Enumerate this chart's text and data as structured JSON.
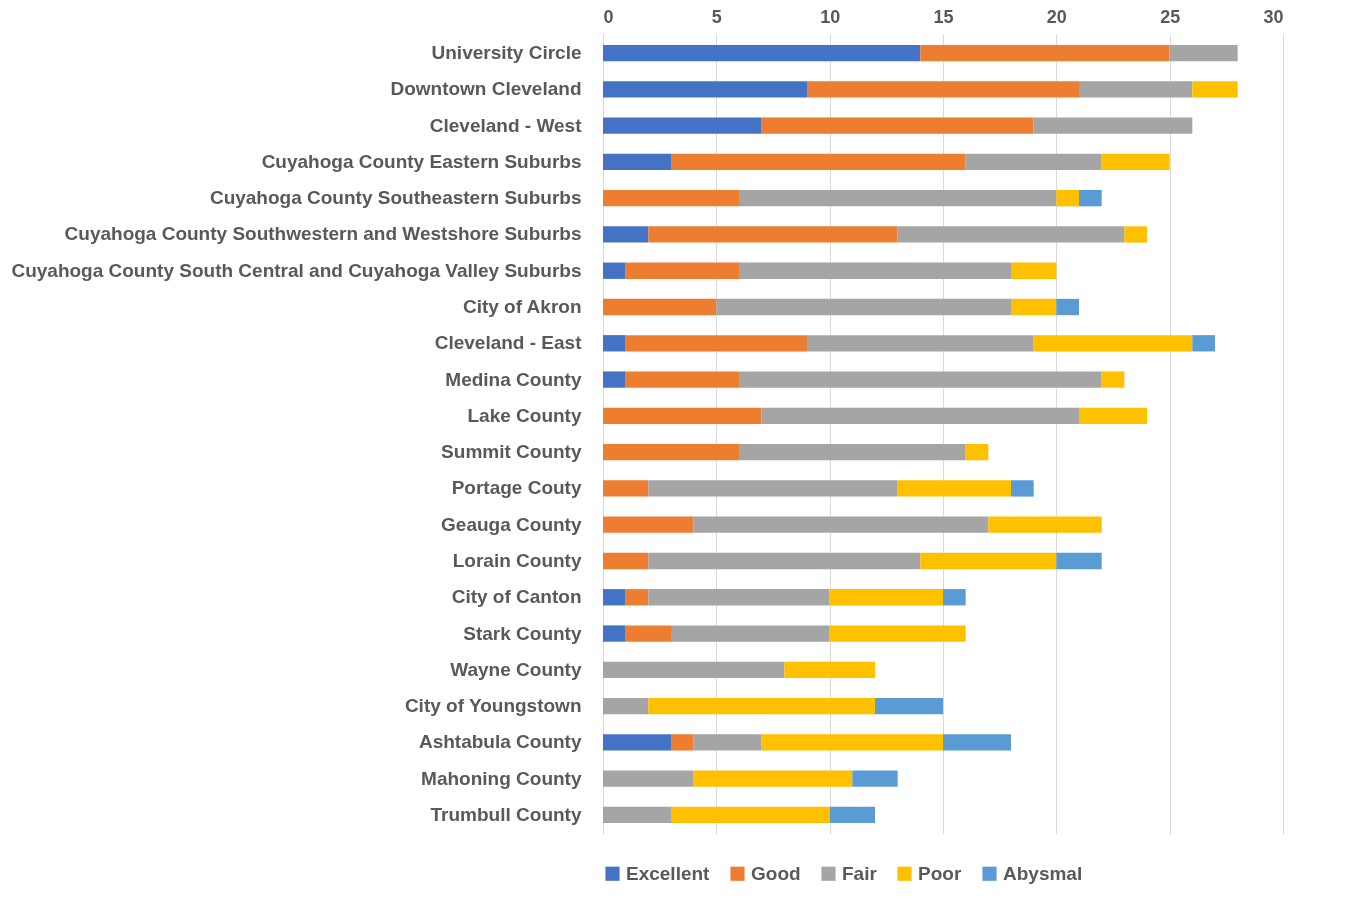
{
  "chart_data": {
    "type": "bar",
    "orientation": "horizontal",
    "stacked": true,
    "grid": "x",
    "legend": "bottom",
    "categories": [
      "University Circle",
      "Downtown Cleveland",
      "Cleveland - West",
      "Cuyahoga County Eastern Suburbs",
      "Cuyahoga County Southeastern Suburbs",
      "Cuyahoga County Southwestern and Westshore Suburbs",
      "Cuyahoga County South Central and Cuyahoga Valley Suburbs",
      "City of Akron",
      "Cleveland - East",
      "Medina County",
      "Lake County",
      "Summit County",
      "Portage Couty",
      "Geauga County",
      "Lorain County",
      "City of Canton",
      "Stark County",
      "Wayne County",
      "City of Youngstown",
      "Ashtabula County",
      "Mahoning County",
      "Trumbull County"
    ],
    "xlim": [
      0,
      30
    ],
    "xticks": [
      0,
      5,
      10,
      15,
      20,
      25,
      30
    ],
    "series": [
      {
        "name": "Excellent",
        "color": "#4472c4",
        "values": [
          14,
          9,
          7,
          3,
          null,
          2,
          1,
          null,
          1,
          1,
          null,
          null,
          null,
          null,
          null,
          1,
          1,
          null,
          null,
          3,
          null,
          null
        ]
      },
      {
        "name": "Good",
        "color": "#ed7d31",
        "values": [
          11,
          12,
          12,
          13,
          6,
          11,
          5,
          5,
          8,
          5,
          7,
          6,
          2,
          4,
          2,
          1,
          2,
          null,
          null,
          1,
          null,
          null
        ]
      },
      {
        "name": "Fair",
        "color": "#a5a5a5",
        "values": [
          3,
          5,
          7,
          6,
          14,
          10,
          12,
          13,
          10,
          16,
          14,
          10,
          11,
          13,
          12,
          8,
          7,
          8,
          2,
          3,
          4,
          3
        ]
      },
      {
        "name": "Poor",
        "color": "#ffc000",
        "values": [
          null,
          2,
          null,
          3,
          1,
          1,
          2,
          2,
          7,
          1,
          3,
          1,
          5,
          5,
          6,
          5,
          6,
          4,
          10,
          8,
          7,
          7
        ]
      },
      {
        "name": "Abysmal",
        "color": "#5b9bd5",
        "values": [
          null,
          null,
          null,
          null,
          1,
          null,
          null,
          1,
          1,
          null,
          null,
          null,
          1,
          null,
          2,
          1,
          null,
          null,
          3,
          3,
          2,
          2
        ]
      }
    ]
  }
}
